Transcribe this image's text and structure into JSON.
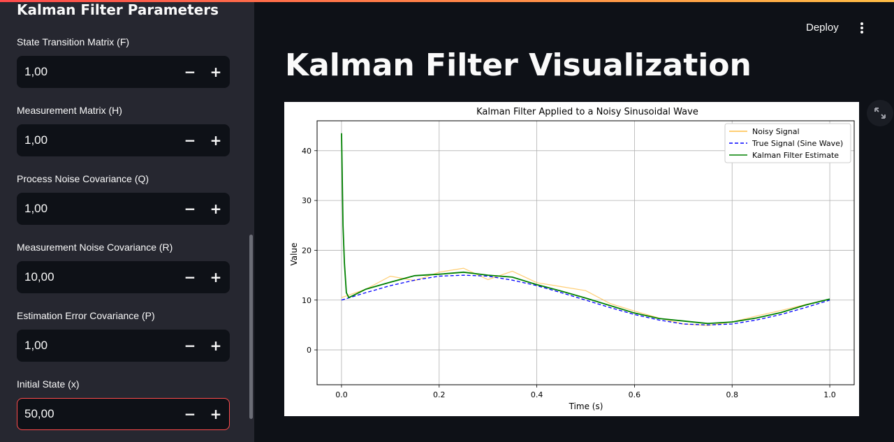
{
  "sidebar": {
    "title": "Kalman Filter Parameters",
    "fields": [
      {
        "label": "State Transition Matrix (F)",
        "value": "1,00"
      },
      {
        "label": "Measurement Matrix (H)",
        "value": "1,00"
      },
      {
        "label": "Process Noise Covariance (Q)",
        "value": "1,00"
      },
      {
        "label": "Measurement Noise Covariance (R)",
        "value": "10,00"
      },
      {
        "label": "Estimation Error Covariance (P)",
        "value": "1,00"
      },
      {
        "label": "Initial State (x)",
        "value": "50,00"
      }
    ],
    "minus": "−",
    "plus": "+"
  },
  "header": {
    "deploy_label": "Deploy",
    "menu_icon": "kebab-menu-icon"
  },
  "main": {
    "title": "Kalman Filter Visualization",
    "expand_icon": "fullscreen-expand-icon"
  },
  "colors": {
    "sidebar_bg": "#262730",
    "app_bg": "#0e1117",
    "accent": "#ff4b4b",
    "noisy": "#ffbd45",
    "true_signal": "#0000ff",
    "kalman": "#008000"
  },
  "chart_data": {
    "type": "line",
    "title": "Kalman Filter Applied to a Noisy Sinusoidal Wave",
    "xlabel": "Time (s)",
    "ylabel": "Value",
    "xlim": [
      -0.05,
      1.05
    ],
    "ylim": [
      -7,
      46
    ],
    "xticks": [
      0.0,
      0.2,
      0.4,
      0.6,
      0.8,
      1.0
    ],
    "xtick_labels": [
      "0.0",
      "0.2",
      "0.4",
      "0.6",
      "0.8",
      "1.0"
    ],
    "yticks": [
      0,
      10,
      20,
      30,
      40
    ],
    "ytick_labels": [
      "0",
      "10",
      "20",
      "30",
      "40"
    ],
    "grid": true,
    "legend_position": "top-right",
    "series": [
      {
        "name": "Noisy Signal",
        "style": "solid",
        "color": "#ffbd45",
        "x": [
          0.0,
          0.05,
          0.1,
          0.15,
          0.2,
          0.25,
          0.3,
          0.35,
          0.4,
          0.45,
          0.5,
          0.55,
          0.6,
          0.65,
          0.7,
          0.75,
          0.8,
          0.85,
          0.9,
          0.95,
          1.0
        ],
        "y": [
          10.5,
          12.2,
          14.8,
          13.9,
          15.6,
          16.4,
          14.1,
          15.8,
          13.5,
          12.7,
          11.9,
          9.3,
          7.8,
          6.4,
          5.2,
          4.9,
          5.6,
          6.8,
          7.9,
          9.1,
          10.2
        ]
      },
      {
        "name": "True Signal (Sine Wave)",
        "style": "dashed",
        "color": "#0000ff",
        "x": [
          0.0,
          0.05,
          0.1,
          0.15,
          0.2,
          0.25,
          0.3,
          0.35,
          0.4,
          0.45,
          0.5,
          0.55,
          0.6,
          0.65,
          0.7,
          0.75,
          0.8,
          0.85,
          0.9,
          0.95,
          1.0
        ],
        "y": [
          10.0,
          11.5,
          12.9,
          14.0,
          14.8,
          15.0,
          14.8,
          14.0,
          12.9,
          11.5,
          10.0,
          8.5,
          7.1,
          6.0,
          5.2,
          5.0,
          5.2,
          6.0,
          7.1,
          8.5,
          10.0
        ]
      },
      {
        "name": "Kalman Filter Estimate",
        "style": "solid",
        "color": "#008000",
        "x": [
          0.0,
          0.003,
          0.006,
          0.01,
          0.015,
          0.05,
          0.1,
          0.15,
          0.2,
          0.25,
          0.3,
          0.35,
          0.4,
          0.45,
          0.5,
          0.55,
          0.6,
          0.65,
          0.7,
          0.75,
          0.8,
          0.85,
          0.9,
          0.95,
          1.0
        ],
        "y": [
          43.5,
          25.0,
          17.5,
          11.5,
          10.5,
          12.2,
          13.6,
          14.9,
          15.2,
          15.6,
          15.0,
          14.6,
          13.1,
          11.8,
          10.4,
          8.9,
          7.4,
          6.3,
          5.8,
          5.3,
          5.6,
          6.4,
          7.5,
          9.0,
          10.2
        ]
      }
    ]
  }
}
